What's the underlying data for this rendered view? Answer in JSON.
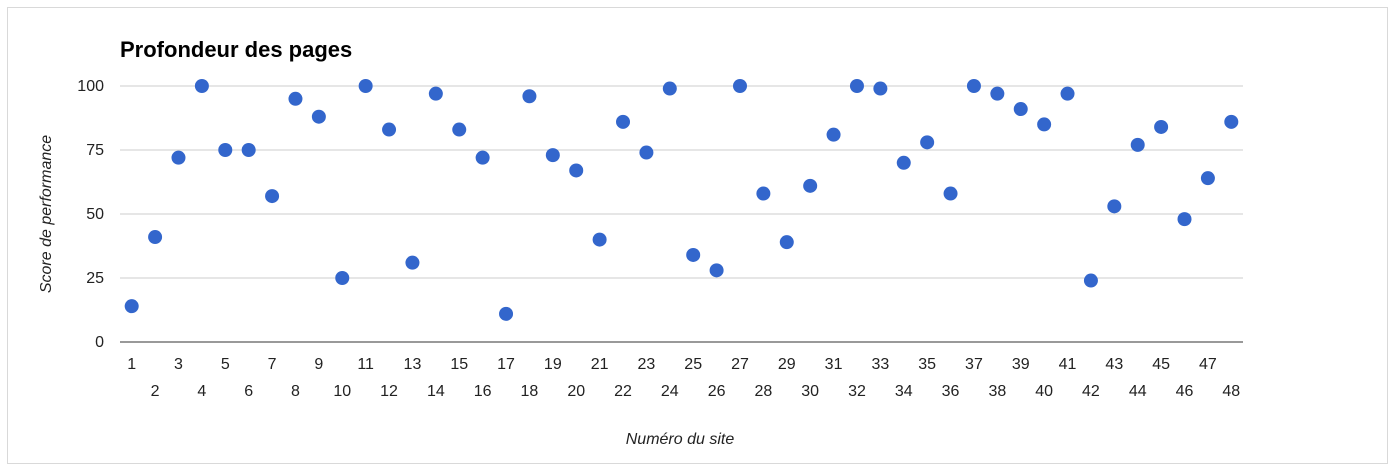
{
  "chart_data": {
    "type": "scatter",
    "title": "Profondeur des pages",
    "xlabel": "Numéro du site",
    "ylabel": "Score de performance",
    "ylim": [
      0,
      100
    ],
    "yticks": [
      0,
      25,
      50,
      75,
      100
    ],
    "grid": true,
    "legend": "none",
    "point_color": "#3366cc",
    "categories": [
      "1",
      "2",
      "3",
      "4",
      "5",
      "6",
      "7",
      "8",
      "9",
      "10",
      "11",
      "12",
      "13",
      "14",
      "15",
      "16",
      "17",
      "18",
      "19",
      "20",
      "21",
      "22",
      "23",
      "24",
      "25",
      "26",
      "27",
      "28",
      "29",
      "30",
      "31",
      "32",
      "33",
      "34",
      "35",
      "36",
      "37",
      "38",
      "39",
      "40",
      "41",
      "42",
      "43",
      "44",
      "45",
      "46",
      "47",
      "48"
    ],
    "series": [
      {
        "values": [
          14,
          41,
          72,
          100,
          75,
          75,
          57,
          95,
          88,
          25,
          100,
          83,
          31,
          97,
          83,
          72,
          11,
          96,
          73,
          67,
          40,
          86,
          74,
          99,
          34,
          28,
          100,
          58,
          39,
          61,
          81,
          100,
          99,
          70,
          78,
          58,
          100,
          97,
          91,
          85,
          97,
          24,
          53,
          77,
          84,
          48,
          64,
          86
        ]
      }
    ]
  }
}
